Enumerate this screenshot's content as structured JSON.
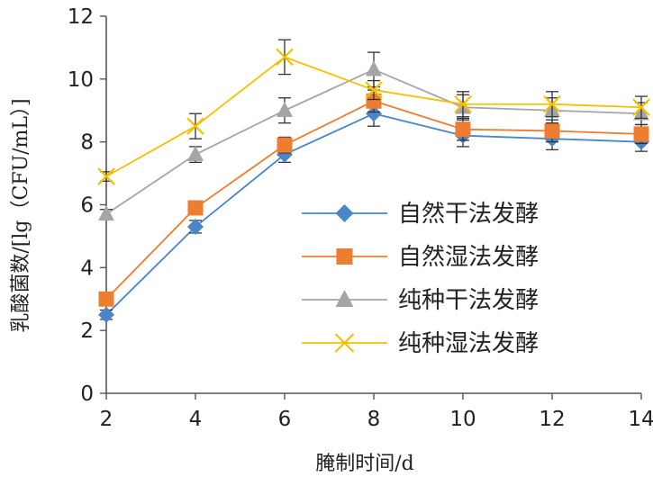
{
  "chart_data": {
    "type": "line",
    "xlabel": "腌制时间/d",
    "ylabel": "乳酸菌数/[lg（CFU/mL）]",
    "x": [
      2,
      4,
      6,
      8,
      10,
      12,
      14
    ],
    "xlim": [
      2,
      14
    ],
    "ylim": [
      0,
      12
    ],
    "xticks": [
      "2",
      "4",
      "6",
      "8",
      "10",
      "12",
      "14"
    ],
    "yticks": [
      "0",
      "2",
      "4",
      "6",
      "8",
      "10",
      "12"
    ],
    "grid": false,
    "legend_position": "center-right",
    "series": [
      {
        "name": "自然干法发酵",
        "color": "#4a86c8",
        "marker": "diamond",
        "values": [
          2.5,
          5.3,
          7.6,
          8.9,
          8.2,
          8.1,
          8.0
        ],
        "errors": [
          0.15,
          0.2,
          0.25,
          0.4,
          0.35,
          0.35,
          0.3
        ]
      },
      {
        "name": "自然湿法发酵",
        "color": "#ed7d31",
        "marker": "square",
        "values": [
          3.0,
          5.9,
          7.9,
          9.3,
          8.4,
          8.35,
          8.25
        ],
        "errors": [
          0.15,
          0.2,
          0.25,
          0.35,
          0.35,
          0.35,
          0.3
        ]
      },
      {
        "name": "纯种干法发酵",
        "color": "#a5a5a5",
        "marker": "triangle",
        "values": [
          5.7,
          7.6,
          9.0,
          10.3,
          9.1,
          9.0,
          8.9
        ],
        "errors": [
          0.15,
          0.25,
          0.4,
          0.55,
          0.4,
          0.4,
          0.35
        ]
      },
      {
        "name": "纯种湿法发酵",
        "color": "#f5c000",
        "marker": "x",
        "values": [
          6.9,
          8.5,
          10.7,
          9.65,
          9.2,
          9.2,
          9.1
        ],
        "errors": [
          0.15,
          0.4,
          0.55,
          0.3,
          0.4,
          0.4,
          0.35
        ]
      }
    ]
  }
}
